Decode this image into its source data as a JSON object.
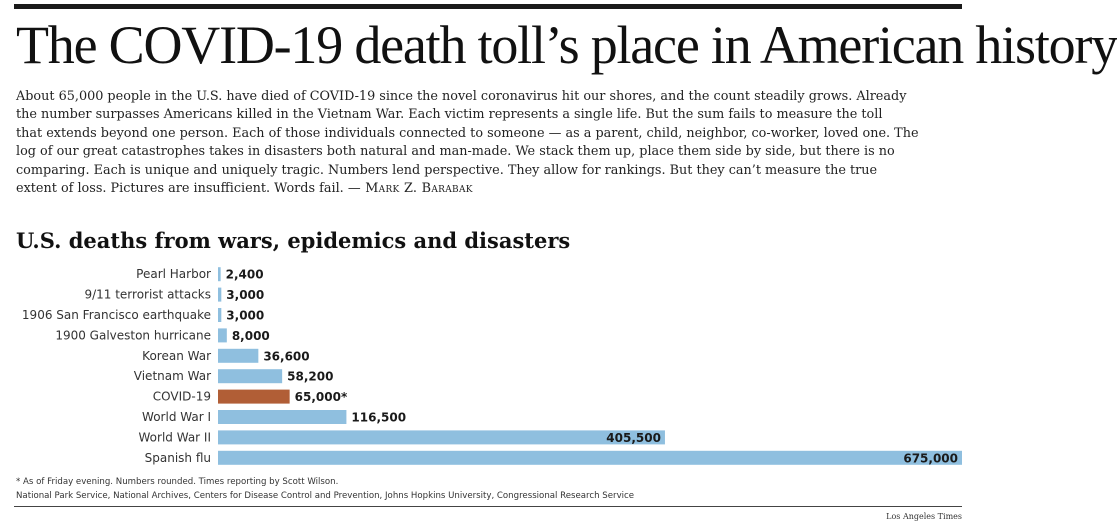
{
  "headline": "The COVID-19 death toll’s place in American history",
  "intro": {
    "lines": [
      "About 65,000 people in the U.S. have died of COVID-19 since the novel coronavirus hit our shores, and the count steadily grows. Already",
      "the number surpasses Americans killed in the Vietnam War. Each victim represents a single life. But the sum fails to measure the toll",
      "that extends beyond one person. Each of those individuals connected to someone — as a parent, child, neighbor, co-worker, loved one. The",
      "log of our great catastrophes takes in disasters both natural and man-made. We stack them up, place them side by side, but there is no",
      "comparing. Each is unique and uniquely tragic. Numbers lend perspective. They allow for rankings. But they can’t measure the true",
      "extent of loss. Pictures are insufficient. Words fail."
    ],
    "byline": "— Mark Z. Barabak"
  },
  "chart_title": "U.S. deaths from wars, epidemics and disasters",
  "chart_data": {
    "type": "bar",
    "orientation": "horizontal",
    "title": "U.S. deaths from wars, epidemics and disasters",
    "xlabel": "",
    "ylabel": "",
    "xlim": [
      0,
      675000
    ],
    "grid": false,
    "categories": [
      "Pearl Harbor",
      "9/11 terrorist attacks",
      "1906 San Francisco earthquake",
      "1900 Galveston hurricane",
      "Korean War",
      "Vietnam War",
      "COVID-19",
      "World War I",
      "World War II",
      "Spanish flu"
    ],
    "values": [
      2400,
      3000,
      3000,
      8000,
      36600,
      58200,
      65000,
      116500,
      405500,
      675000
    ],
    "value_labels": [
      "2,400",
      "3,000",
      "3,000",
      "8,000",
      "36,600",
      "58,200",
      "65,000*",
      "116,500",
      "405,500",
      "675,000"
    ],
    "highlight": "COVID-19",
    "colors": {
      "bar": "#8fbfdf",
      "highlight": "#b15e36",
      "label": "#333333"
    }
  },
  "notes": {
    "footnote": "* As of Friday evening. Numbers rounded. Times reporting by Scott Wilson.",
    "sources": "National Park Service, National Archives, Centers for Disease Control and Prevention, Johns Hopkins University, Congressional Research Service"
  },
  "credit": "Los Angeles Times"
}
